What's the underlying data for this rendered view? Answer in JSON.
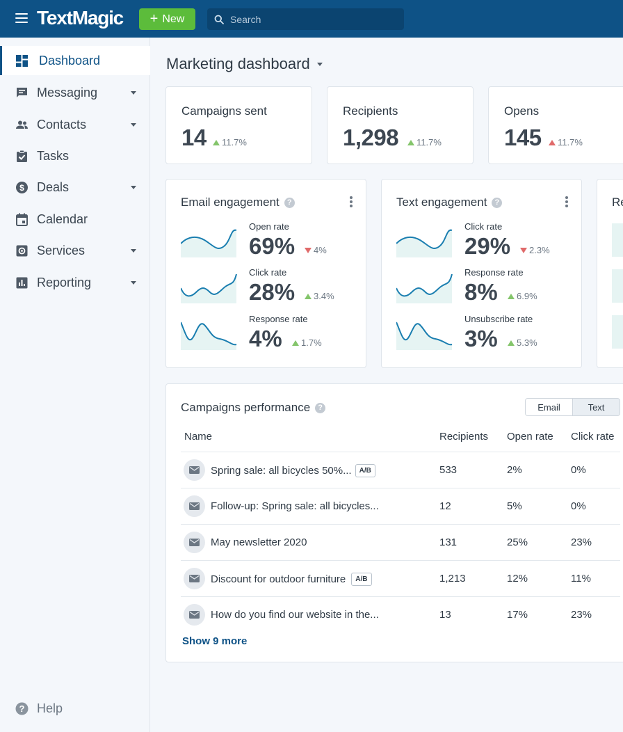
{
  "header": {
    "logo": "TextMagic",
    "new_button": "New",
    "search_placeholder": "Search"
  },
  "sidebar": {
    "items": [
      {
        "label": "Dashboard",
        "icon": "dashboard-icon",
        "active": true
      },
      {
        "label": "Messaging",
        "icon": "message-icon",
        "has_caret": true
      },
      {
        "label": "Contacts",
        "icon": "contacts-icon",
        "has_caret": true
      },
      {
        "label": "Tasks",
        "icon": "tasks-icon"
      },
      {
        "label": "Deals",
        "icon": "dollar-icon",
        "has_caret": true
      },
      {
        "label": "Calendar",
        "icon": "calendar-icon"
      },
      {
        "label": "Services",
        "icon": "services-icon",
        "has_caret": true
      },
      {
        "label": "Reporting",
        "icon": "reporting-icon",
        "has_caret": true
      }
    ],
    "help": "Help"
  },
  "page": {
    "title": "Marketing dashboard"
  },
  "stats": [
    {
      "label": "Campaigns sent",
      "value": "14",
      "delta": "11.7%",
      "direction": "up-green"
    },
    {
      "label": "Recipients",
      "value": "1,298",
      "delta": "11.7%",
      "direction": "up-green"
    },
    {
      "label": "Opens",
      "value": "145",
      "delta": "11.7%",
      "direction": "up-red"
    }
  ],
  "email_engagement": {
    "title": "Email engagement",
    "metrics": [
      {
        "label": "Open rate",
        "value": "69%",
        "delta": "4%",
        "direction": "down"
      },
      {
        "label": "Click rate",
        "value": "28%",
        "delta": "3.4%",
        "direction": "up"
      },
      {
        "label": "Response rate",
        "value": "4%",
        "delta": "1.7%",
        "direction": "up"
      }
    ]
  },
  "text_engagement": {
    "title": "Text engagement",
    "metrics": [
      {
        "label": "Click rate",
        "value": "29%",
        "delta": "2.3%",
        "direction": "down"
      },
      {
        "label": "Response rate",
        "value": "8%",
        "delta": "6.9%",
        "direction": "up"
      },
      {
        "label": "Unsubscribe rate",
        "value": "3%",
        "delta": "5.3%",
        "direction": "up"
      }
    ]
  },
  "third_card": {
    "title_fragment": "Re"
  },
  "campaigns": {
    "title": "Campaigns performance",
    "toggle": {
      "email": "Email",
      "text": "Text",
      "selected": "Email"
    },
    "columns": [
      "Name",
      "Recipients",
      "Open rate",
      "Click rate"
    ],
    "rows": [
      {
        "name": "Spring sale: all bicycles 50%...",
        "ab": "A/B",
        "recipients": "533",
        "open_rate": "2%",
        "click_rate": "0%"
      },
      {
        "name": "Follow-up: Spring sale: all bicycles...",
        "ab": "",
        "recipients": "12",
        "open_rate": "5%",
        "click_rate": "0%"
      },
      {
        "name": "May newsletter 2020",
        "ab": "",
        "recipients": "131",
        "open_rate": "25%",
        "click_rate": "23%"
      },
      {
        "name": "Discount for outdoor furniture",
        "ab": "A/B",
        "recipients": "1,213",
        "open_rate": "12%",
        "click_rate": "11%"
      },
      {
        "name": "How do you find our website in the...",
        "ab": "",
        "recipients": "13",
        "open_rate": "17%",
        "click_rate": "23%"
      }
    ],
    "show_more": "Show 9 more"
  },
  "colors": {
    "brand": "#0e5286",
    "new_button": "#5cbc3b",
    "up_green": "#84c56b",
    "down_red": "#e06a6a",
    "sparkline": "#1a7eb0",
    "sparkline_fill": "#e6f4f3"
  }
}
